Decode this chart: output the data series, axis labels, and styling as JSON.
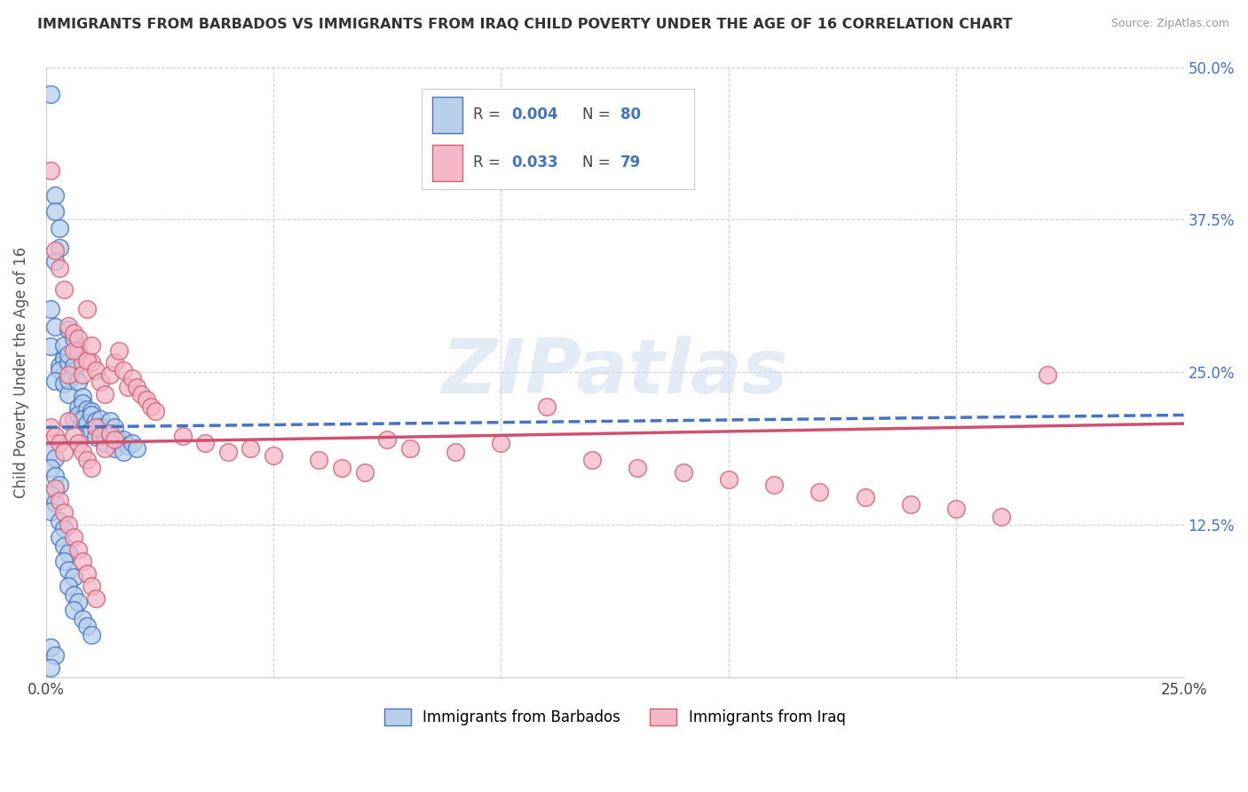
{
  "title": "IMMIGRANTS FROM BARBADOS VS IMMIGRANTS FROM IRAQ CHILD POVERTY UNDER THE AGE OF 16 CORRELATION CHART",
  "source": "Source: ZipAtlas.com",
  "ylabel": "Child Poverty Under the Age of 16",
  "xlim": [
    0.0,
    0.25
  ],
  "ylim": [
    0.0,
    0.5
  ],
  "xticks": [
    0.0,
    0.05,
    0.1,
    0.15,
    0.2,
    0.25
  ],
  "yticks": [
    0.0,
    0.125,
    0.25,
    0.375,
    0.5
  ],
  "xticklabels": [
    "0.0%",
    "",
    "",
    "",
    "",
    "25.0%"
  ],
  "yticklabels_right": [
    "",
    "12.5%",
    "25.0%",
    "37.5%",
    "50.0%"
  ],
  "barbados_fill": "#b8d0ea",
  "barbados_edge": "#4472c4",
  "iraq_fill": "#f4b8c8",
  "iraq_edge": "#d06070",
  "trendline_barbados": "#4472c4",
  "trendline_iraq": "#d05070",
  "background_color": "#ffffff",
  "grid_color": "#cccccc",
  "watermark_text": "ZIPatlas",
  "watermark_color": "#d0dff0",
  "legend_label1": "Immigrants from Barbados",
  "legend_label2": "Immigrants from Iraq",
  "barbados_x": [
    0.001,
    0.002,
    0.002,
    0.003,
    0.003,
    0.002,
    0.001,
    0.002,
    0.001,
    0.004,
    0.003,
    0.004,
    0.004,
    0.003,
    0.002,
    0.005,
    0.004,
    0.005,
    0.004,
    0.005,
    0.006,
    0.005,
    0.006,
    0.005,
    0.007,
    0.006,
    0.007,
    0.008,
    0.007,
    0.006,
    0.008,
    0.007,
    0.009,
    0.008,
    0.01,
    0.009,
    0.01,
    0.011,
    0.01,
    0.011,
    0.012,
    0.012,
    0.013,
    0.013,
    0.014,
    0.015,
    0.014,
    0.016,
    0.015,
    0.017,
    0.018,
    0.017,
    0.019,
    0.02,
    0.001,
    0.002,
    0.001,
    0.002,
    0.003,
    0.001,
    0.002,
    0.001,
    0.003,
    0.004,
    0.003,
    0.004,
    0.005,
    0.004,
    0.005,
    0.006,
    0.005,
    0.006,
    0.007,
    0.006,
    0.008,
    0.009,
    0.01,
    0.001,
    0.002,
    0.001
  ],
  "barbados_y": [
    0.478,
    0.395,
    0.382,
    0.368,
    0.352,
    0.341,
    0.302,
    0.287,
    0.271,
    0.262,
    0.255,
    0.248,
    0.261,
    0.252,
    0.243,
    0.285,
    0.272,
    0.258,
    0.241,
    0.232,
    0.278,
    0.265,
    0.251,
    0.244,
    0.268,
    0.255,
    0.242,
    0.23,
    0.221,
    0.212,
    0.225,
    0.215,
    0.22,
    0.212,
    0.218,
    0.208,
    0.215,
    0.21,
    0.203,
    0.197,
    0.212,
    0.205,
    0.198,
    0.192,
    0.21,
    0.205,
    0.198,
    0.194,
    0.188,
    0.195,
    0.19,
    0.185,
    0.192,
    0.188,
    0.185,
    0.18,
    0.172,
    0.165,
    0.158,
    0.15,
    0.143,
    0.136,
    0.128,
    0.122,
    0.115,
    0.108,
    0.102,
    0.095,
    0.088,
    0.082,
    0.075,
    0.068,
    0.062,
    0.055,
    0.048,
    0.042,
    0.035,
    0.025,
    0.018,
    0.008
  ],
  "iraq_x": [
    0.001,
    0.002,
    0.003,
    0.004,
    0.005,
    0.006,
    0.007,
    0.008,
    0.009,
    0.01,
    0.005,
    0.006,
    0.007,
    0.008,
    0.009,
    0.01,
    0.011,
    0.012,
    0.013,
    0.014,
    0.015,
    0.016,
    0.017,
    0.018,
    0.019,
    0.02,
    0.021,
    0.022,
    0.023,
    0.024,
    0.001,
    0.002,
    0.003,
    0.004,
    0.005,
    0.006,
    0.007,
    0.008,
    0.009,
    0.01,
    0.011,
    0.012,
    0.013,
    0.014,
    0.015,
    0.03,
    0.035,
    0.04,
    0.045,
    0.05,
    0.06,
    0.065,
    0.07,
    0.075,
    0.08,
    0.09,
    0.1,
    0.11,
    0.12,
    0.13,
    0.14,
    0.15,
    0.16,
    0.17,
    0.18,
    0.19,
    0.2,
    0.21,
    0.22,
    0.002,
    0.003,
    0.004,
    0.005,
    0.006,
    0.007,
    0.008,
    0.009,
    0.01,
    0.011
  ],
  "iraq_y": [
    0.415,
    0.35,
    0.335,
    0.318,
    0.288,
    0.282,
    0.268,
    0.258,
    0.302,
    0.258,
    0.248,
    0.268,
    0.278,
    0.248,
    0.26,
    0.272,
    0.252,
    0.242,
    0.232,
    0.248,
    0.258,
    0.268,
    0.252,
    0.238,
    0.245,
    0.238,
    0.232,
    0.228,
    0.222,
    0.218,
    0.205,
    0.198,
    0.192,
    0.185,
    0.21,
    0.198,
    0.192,
    0.185,
    0.178,
    0.172,
    0.205,
    0.198,
    0.188,
    0.2,
    0.195,
    0.198,
    0.192,
    0.185,
    0.188,
    0.182,
    0.178,
    0.172,
    0.168,
    0.195,
    0.188,
    0.185,
    0.192,
    0.222,
    0.178,
    0.172,
    0.168,
    0.162,
    0.158,
    0.152,
    0.148,
    0.142,
    0.138,
    0.132,
    0.248,
    0.155,
    0.145,
    0.135,
    0.125,
    0.115,
    0.105,
    0.095,
    0.085,
    0.075,
    0.065
  ],
  "trendline_b_x0": 0.0,
  "trendline_b_y0": 0.205,
  "trendline_b_x1": 0.25,
  "trendline_b_y1": 0.215,
  "trendline_i_x0": 0.0,
  "trendline_i_y0": 0.192,
  "trendline_i_x1": 0.25,
  "trendline_i_y1": 0.208
}
